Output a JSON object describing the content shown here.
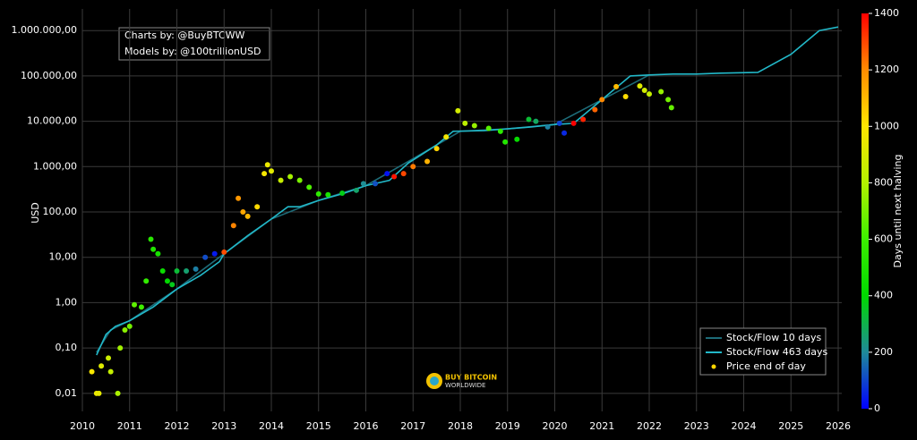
{
  "chart_data": {
    "type": "scatter",
    "ylabel": "USD",
    "log_y": true,
    "grid": true,
    "background": "#000000",
    "xlim": [
      2010,
      2026
    ],
    "xticks": [
      2010,
      2011,
      2012,
      2013,
      2014,
      2015,
      2016,
      2017,
      2018,
      2019,
      2020,
      2021,
      2022,
      2023,
      2024,
      2025,
      2026
    ],
    "ylim": [
      0.004,
      3000000
    ],
    "yticks": [
      {
        "value": 0.01,
        "label": "0,01"
      },
      {
        "value": 0.1,
        "label": "0,10"
      },
      {
        "value": 1,
        "label": "1,00"
      },
      {
        "value": 10,
        "label": "10,00"
      },
      {
        "value": 100,
        "label": "100,00"
      },
      {
        "value": 1000,
        "label": "1.000,00"
      },
      {
        "value": 10000,
        "label": "10.000,00"
      },
      {
        "value": 100000,
        "label": "100.000,00"
      },
      {
        "value": 1000000,
        "label": "1.000.000,00"
      }
    ],
    "annotation": [
      "Charts by: @BuyBTCWW",
      "Models by: @100trillionUSD"
    ],
    "watermark": [
      "BUY BITCOIN",
      "WORLDWIDE"
    ],
    "legend": "lower right",
    "colorbar": {
      "label": "Days until next halving",
      "clim": [
        0,
        1400
      ],
      "ticks": [
        0,
        200,
        400,
        600,
        800,
        1000,
        1200,
        1400
      ],
      "colorscale": [
        "#0000ff",
        "#1f8a9a",
        "#00d800",
        "#3cf000",
        "#b4f000",
        "#ffe600",
        "#ff8c00",
        "#ff0000"
      ]
    },
    "series": [
      {
        "name": "Stock/Flow 10 days",
        "kind": "line",
        "color": "#1d6b78",
        "x": [
          2010.3,
          2010.6,
          2011.0,
          2012.0,
          2013.0,
          2014.0,
          2015.0,
          2016.0,
          2017.0,
          2018.0,
          2019.0,
          2020.0,
          2021.0,
          2022.0
        ],
        "values": [
          0.08,
          0.25,
          0.4,
          2,
          12,
          70,
          180,
          380,
          1500,
          6000,
          6800,
          8500,
          30000,
          105000
        ]
      },
      {
        "name": "Stock/Flow 463 days",
        "kind": "line",
        "color": "#22b8c8",
        "x": [
          2010.3,
          2010.5,
          2010.7,
          2011.0,
          2011.5,
          2012.0,
          2012.5,
          2012.9,
          2013.0,
          2013.5,
          2014.0,
          2014.35,
          2014.6,
          2015.0,
          2015.5,
          2016.0,
          2016.5,
          2016.9,
          2017.5,
          2017.85,
          2018.5,
          2019.0,
          2019.5,
          2020.0,
          2020.4,
          2020.8,
          2021.2,
          2021.6,
          2022.0,
          2022.5,
          2023.0,
          2023.5,
          2024.3,
          2025.0,
          2025.6,
          2026.0
        ],
        "values": [
          0.07,
          0.2,
          0.3,
          0.4,
          0.8,
          2,
          4,
          8,
          12,
          30,
          70,
          130,
          130,
          180,
          250,
          380,
          500,
          1200,
          3000,
          6000,
          6200,
          6800,
          7500,
          8500,
          9000,
          20000,
          45000,
          100000,
          105000,
          110000,
          110000,
          115000,
          120000,
          300000,
          1000000,
          1200000
        ]
      },
      {
        "name": "Price end of day",
        "kind": "points",
        "color": "#ffd700",
        "x": [
          2010.2,
          2010.3,
          2010.35,
          2010.4,
          2010.55,
          2010.6,
          2010.75,
          2010.8,
          2010.9,
          2011.0,
          2011.1,
          2011.25,
          2011.35,
          2011.45,
          2011.5,
          2011.6,
          2011.7,
          2011.8,
          2011.9,
          2012.0,
          2012.2,
          2012.4,
          2012.6,
          2012.8,
          2013.0,
          2013.2,
          2013.3,
          2013.4,
          2013.5,
          2013.7,
          2013.85,
          2013.92,
          2014.0,
          2014.2,
          2014.4,
          2014.6,
          2014.8,
          2015.0,
          2015.2,
          2015.5,
          2015.8,
          2015.95,
          2016.2,
          2016.45,
          2016.6,
          2016.8,
          2017.0,
          2017.3,
          2017.5,
          2017.7,
          2017.95,
          2018.1,
          2018.3,
          2018.6,
          2018.85,
          2018.95,
          2019.2,
          2019.45,
          2019.6,
          2019.85,
          2020.1,
          2020.2,
          2020.4,
          2020.6,
          2020.85,
          2021.0,
          2021.3,
          2021.5,
          2021.8,
          2021.9,
          2022.0,
          2022.25,
          2022.4,
          2022.47
        ],
        "values": [
          0.03,
          0.01,
          0.01,
          0.04,
          0.06,
          0.03,
          0.01,
          0.1,
          0.25,
          0.3,
          0.9,
          0.8,
          3,
          25,
          15,
          12,
          5,
          3,
          2.5,
          5,
          5,
          5.5,
          10,
          12,
          13,
          50,
          200,
          100,
          80,
          130,
          700,
          1100,
          800,
          500,
          600,
          500,
          350,
          250,
          240,
          260,
          300,
          420,
          420,
          700,
          600,
          700,
          1000,
          1300,
          2500,
          4500,
          17000,
          9000,
          8000,
          7000,
          6000,
          3500,
          4000,
          11000,
          10000,
          7500,
          9000,
          5500,
          9000,
          11000,
          18000,
          30000,
          58000,
          35000,
          60000,
          48000,
          40000,
          45000,
          30000,
          20000
        ],
        "c": [
          985,
          949,
          931,
          913,
          858,
          839,
          785,
          767,
          730,
          694,
          657,
          602,
          566,
          529,
          511,
          475,
          438,
          402,
          365,
          329,
          256,
          183,
          110,
          37,
          1292,
          1212,
          1175,
          1139,
          1102,
          1029,
          975,
          949,
          920,
          847,
          774,
          701,
          628,
          555,
          482,
          372,
          263,
          208,
          117,
          26,
          1372,
          1299,
          1226,
          1117,
          1044,
          971,
          880,
          825,
          752,
          643,
          551,
          515,
          423,
          332,
          277,
          186,
          95,
          58,
          1400,
          1351,
          1259,
          1205,
          1095,
          1022,
          913,
          876,
          840,
          748,
          694,
          668
        ]
      }
    ]
  }
}
